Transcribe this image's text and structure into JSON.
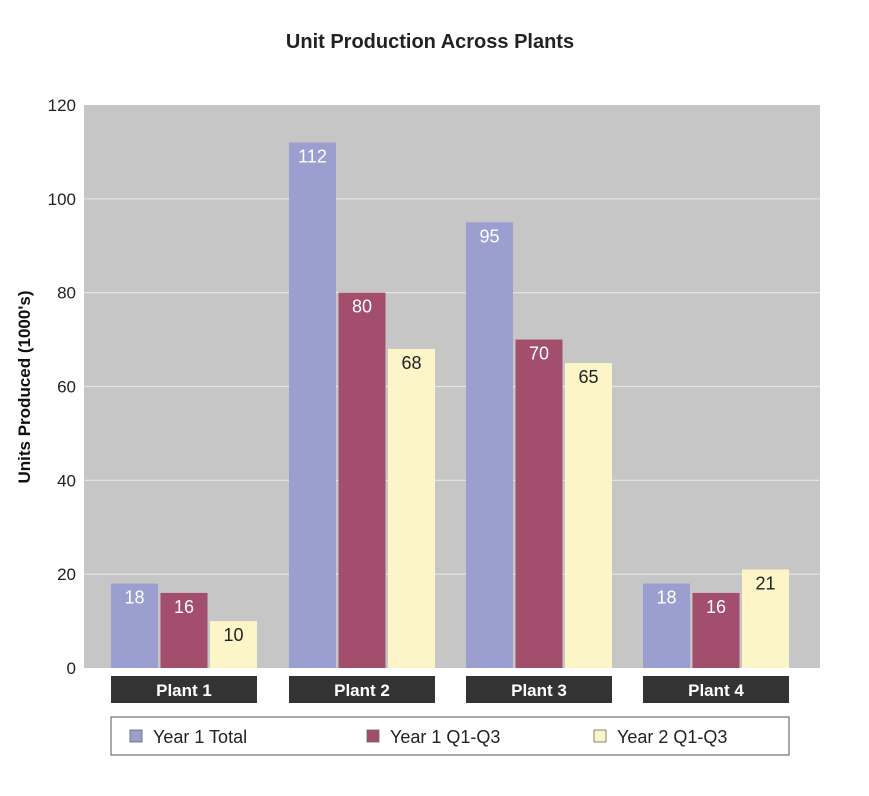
{
  "chart_data": {
    "type": "bar",
    "title": "Unit Production Across Plants",
    "ylabel": "Units Produced (1000's)",
    "xlabel": "",
    "ylim": [
      0,
      120
    ],
    "yticks": [
      0,
      20,
      40,
      60,
      80,
      100,
      120
    ],
    "grid": true,
    "legend_position": "bottom",
    "categories": [
      "Plant 1",
      "Plant 2",
      "Plant 3",
      "Plant 4"
    ],
    "series": [
      {
        "name": "Year 1 Total",
        "color": "#9a9fd0",
        "label_color": "#ffffff",
        "values": [
          18,
          112,
          95,
          18
        ]
      },
      {
        "name": "Year 1 Q1-Q3",
        "color": "#a24e6c",
        "label_color": "#ffffff",
        "values": [
          16,
          80,
          70,
          16
        ]
      },
      {
        "name": "Year 2 Q1-Q3",
        "color": "#fcf5c8",
        "label_color": "#222222",
        "values": [
          10,
          68,
          65,
          21
        ]
      }
    ],
    "colors": {
      "plot_background": "#c6c6c6",
      "gridline": "#e6e6e6",
      "category_label_background": "#333333",
      "category_label_text": "#ffffff"
    }
  }
}
